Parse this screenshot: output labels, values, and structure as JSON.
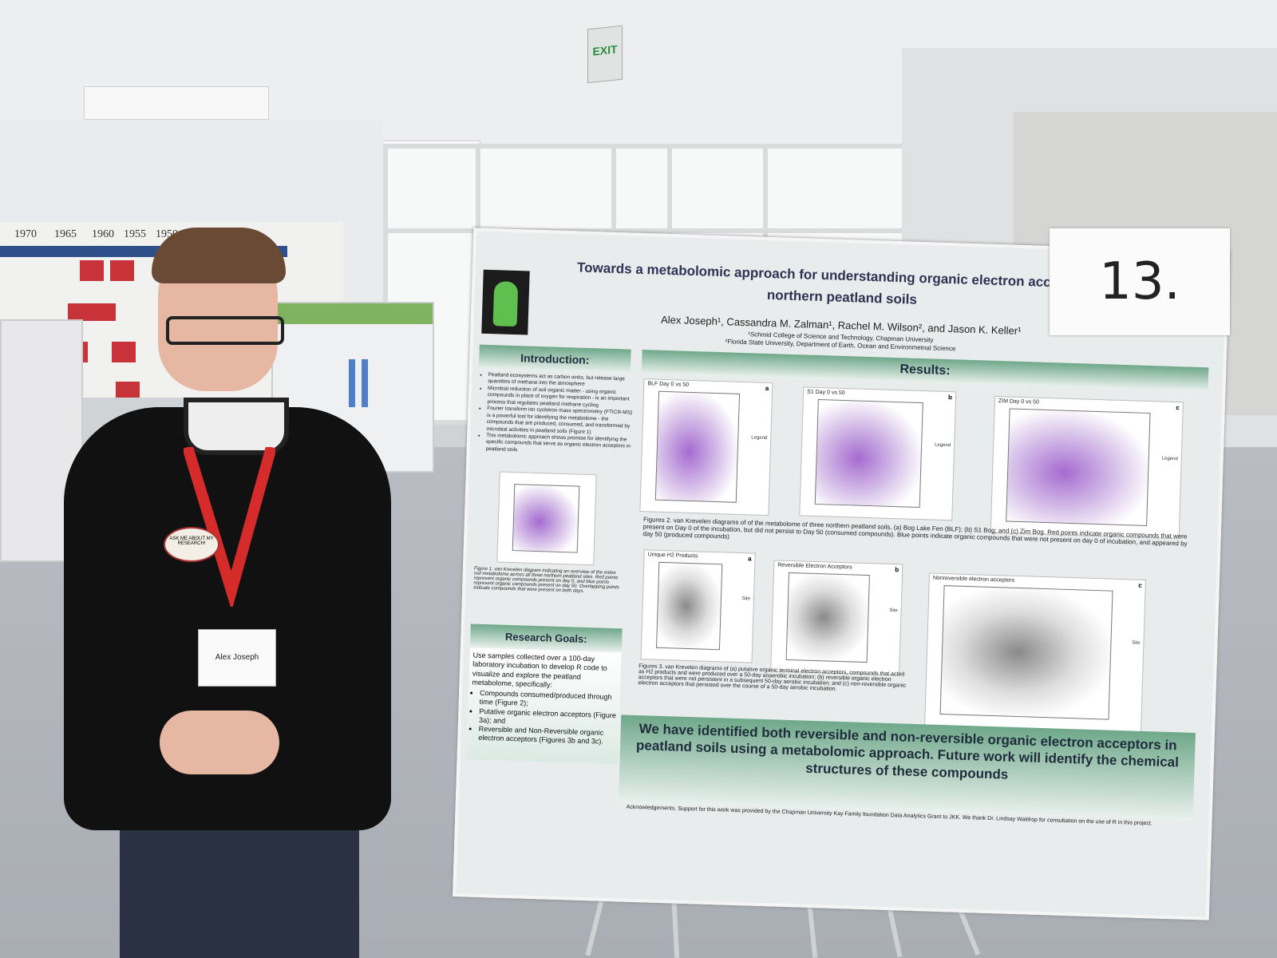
{
  "sign": {
    "exit": "EXIT"
  },
  "timeline": {
    "years": [
      "1970",
      "1965",
      "1960",
      "1955",
      "1950"
    ]
  },
  "booth_number": "13.",
  "person": {
    "name_badge": "Alex Joseph",
    "pin": "ASK ME ABOUT MY RESEARCH!"
  },
  "poster": {
    "title": "Towards a metabolomic approach for understanding organic electron acceptors in northern peatland soils",
    "authors": "Alex Joseph¹, Cassandra M. Zalman¹, Rachel M. Wilson², and Jason K. Keller¹",
    "affiliation_1": "¹Schmid College of Science and Technology, Chapman University",
    "affiliation_2": "²Florida State University, Department of Earth, Ocean and Environmetnal Science",
    "intro_heading": "Introduction:",
    "intro_bullets": [
      "Peatland ecosystems act as carbon sinks, but release large quantities of methane into the atmosphere",
      "Microbial reduction of soil organic matter - using organic compounds in place of oxygen for respiration - is an important process that regulates peatland methane cycling",
      "Fourier transform ion cyclotron mass spectrometry (FTICR-MS) is a powerful tool for identifying the metabolome - the compounds that are produced, consumed, and transformed by microbial activities in peatland soils (Figure 1)",
      "This metabolomic approach shows promise for identifying the specific compounds that serve as organic electron acceptors in peatland soils"
    ],
    "fig1_caption": "Figure 1. van Krevelen diagram indicating an overview of the entire soil metabolome across all three northern peatland sites. Red points represent organic compounds present on day 0, and blue points represent organic compounds present on day 50. Overlapping points indicate compounds that were present on both days.",
    "goals_heading": "Research Goals:",
    "goals_text": "Use samples collected over a 100-day laboratory incubation to develop R code to visualize and explore the peatland metabolome, specifically:",
    "goals_bullets": [
      "Compounds consumed/produced through time (Figure 2);",
      "Putative organic electron acceptors (Figure 3a); and",
      "Reversible and Non-Reversible organic electron acceptors (Figures 3b and 3c)."
    ],
    "results_heading": "Results:",
    "fig2_plots": [
      {
        "title": "BLF Day 0 vs 50",
        "letter": "a",
        "legend": "Legend"
      },
      {
        "title": "S1 Day 0 vs 50",
        "letter": "b",
        "legend": "Legend"
      },
      {
        "title": "ZIM Day 0 vs 50",
        "letter": "c",
        "legend": "Legend"
      }
    ],
    "fig2_caption": "Figures 2. van Krevelen diagrams of of the metabolome of three northern peatland soils, (a) Bog Lake Fen (BLF); (b) S1 Bog; and (c) Zim Bog. Red points indicate organic compounds that were present on Day 0 of the incubation, but did not persist to Day 50 (consumed compounds). Blue points indicate organic compounds that were not present on day 0 of incubation, and appeared by day 50 (produced compounds)",
    "fig3_plots": [
      {
        "title": "Unique H2 Products",
        "letter": "a",
        "legend": "Site"
      },
      {
        "title": "Reversible Electron Acceptors",
        "letter": "b",
        "legend": "Site"
      },
      {
        "title": "Nonreversible electron acceptors",
        "letter": "c",
        "legend": "Site"
      }
    ],
    "fig3_caption": "Figures 3. van Krevelen diagrams of (a) putative organic terminal electron acceptors, compounds that acted as H2 products and were produced over a 50-day anaerobic incubation; (b) reversible organic electron acceptors that were not persistent in a subsequent 50-day aerobic incubation; and (c) non-reversible organic electron acceptors that persisted over the course of a 50-day aerobic incubation.",
    "conclusion": "We have identified both reversible and non-reversible organic electron acceptors in peatland soils using a metabolomic approach. Future work will identify the chemical structures of these compounds",
    "acknowledgements": "Acknowledgements. Support for this work was provided by the Chapman University Kay Family foundation Data Analytics Grant to JKK. We thank Dr. Lindsay Waldrop for consultation on the use of R in this project."
  }
}
